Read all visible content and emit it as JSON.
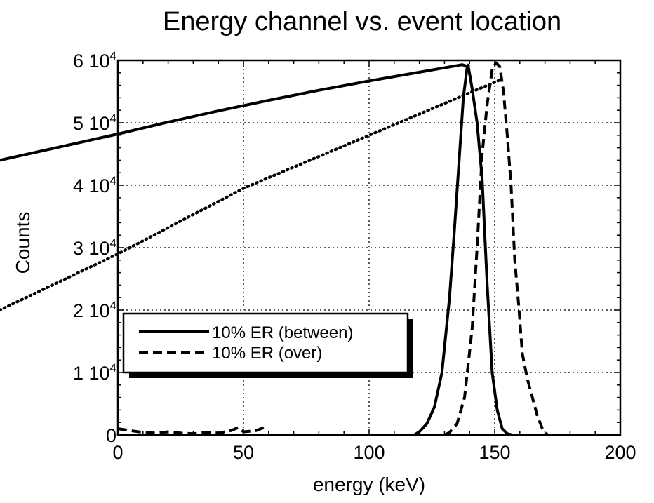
{
  "chart_data": {
    "type": "line",
    "title": "Energy channel vs. event location",
    "xlabel": "energy (keV)",
    "ylabel": "Counts",
    "xlim": [
      0,
      200
    ],
    "ylim": [
      0,
      60000
    ],
    "grid": true,
    "legend_position": "bottom-left",
    "x_ticks": [
      0,
      50,
      100,
      150,
      200
    ],
    "x_tick_labels": [
      "0",
      "50",
      "100",
      "150",
      "200"
    ],
    "y_ticks": [
      0,
      10000,
      20000,
      30000,
      40000,
      50000,
      60000
    ],
    "y_tick_labels": [
      {
        "mantissa": "0",
        "exponent": ""
      },
      {
        "mantissa": "1 10",
        "exponent": "4"
      },
      {
        "mantissa": "2 10",
        "exponent": "4"
      },
      {
        "mantissa": "3 10",
        "exponent": "4"
      },
      {
        "mantissa": "4 10",
        "exponent": "4"
      },
      {
        "mantissa": "5 10",
        "exponent": "4"
      },
      {
        "mantissa": "6 10",
        "exponent": "4"
      }
    ],
    "series": [
      {
        "name": "10% ER (between)",
        "style": "solid",
        "points": [
          [
            -47,
            44000
          ],
          [
            0,
            48200
          ],
          [
            20,
            50100
          ],
          [
            40,
            51900
          ],
          [
            60,
            53600
          ],
          [
            80,
            55200
          ],
          [
            100,
            56700
          ],
          [
            120,
            58100
          ],
          [
            137,
            59300
          ],
          [
            139.5,
            59000
          ],
          [
            141,
            55500
          ],
          [
            143,
            50000
          ],
          [
            145,
            41000
          ],
          [
            147,
            24000
          ],
          [
            149,
            10000
          ],
          [
            151,
            4000
          ],
          [
            153,
            1000
          ],
          [
            155,
            200
          ],
          [
            157,
            0
          ]
        ]
      },
      {
        "name": "10% ER (over)",
        "style": "dashed",
        "points": [
          [
            0,
            1000
          ],
          [
            5,
            700
          ],
          [
            10,
            400
          ],
          [
            15,
            300
          ],
          [
            20,
            500
          ],
          [
            25,
            300
          ],
          [
            30,
            200
          ],
          [
            35,
            400
          ],
          [
            40,
            300
          ],
          [
            45,
            700
          ],
          [
            48,
            1200
          ],
          [
            50,
            500
          ],
          [
            55,
            700
          ],
          [
            59,
            1300
          ]
        ]
      },
      {
        "name": "",
        "style": "solid",
        "points": [
          [
            118,
            0
          ],
          [
            120,
            500
          ],
          [
            123,
            1800
          ],
          [
            126,
            4500
          ],
          [
            129,
            10000
          ],
          [
            132,
            22000
          ],
          [
            134,
            33000
          ],
          [
            136,
            45000
          ],
          [
            137.5,
            54000
          ],
          [
            139,
            58800
          ],
          [
            139.8,
            59400
          ]
        ]
      },
      {
        "name": "",
        "style": "dashed",
        "points": [
          [
            130,
            0
          ],
          [
            132,
            400
          ],
          [
            135,
            1800
          ],
          [
            138,
            6000
          ],
          [
            141,
            17000
          ],
          [
            143,
            30000
          ],
          [
            145,
            45000
          ],
          [
            147,
            53000
          ],
          [
            149,
            58500
          ],
          [
            150.5,
            59600
          ],
          [
            152,
            59000
          ],
          [
            153.5,
            55000
          ],
          [
            155,
            48000
          ],
          [
            156.5,
            40000
          ],
          [
            158,
            28000
          ],
          [
            159.5,
            21000
          ],
          [
            161,
            13000
          ],
          [
            163,
            9000
          ],
          [
            165,
            6000
          ],
          [
            167,
            3000
          ],
          [
            169,
            1000
          ],
          [
            171,
            0
          ]
        ]
      },
      {
        "name": "",
        "style": "dotted",
        "points": [
          [
            -47,
            20000
          ],
          [
            0,
            29000
          ],
          [
            50,
            39500
          ],
          [
            100,
            48000
          ],
          [
            150,
            56500
          ],
          [
            153,
            57000
          ]
        ]
      }
    ]
  }
}
